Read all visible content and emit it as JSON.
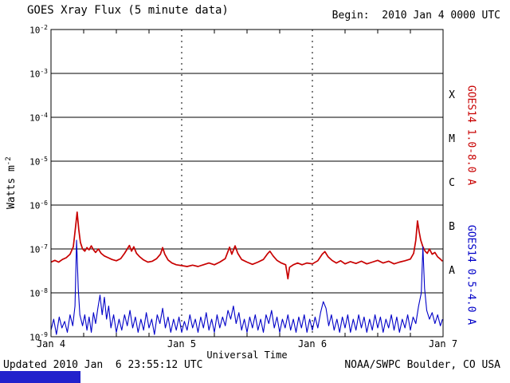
{
  "header": {
    "title": "GOES Xray Flux (5 minute data)",
    "begin_label": "Begin:  2010 Jan 4 0000 UTC"
  },
  "footer": {
    "updated": "Updated 2010 Jan  6 23:55:12 UTC",
    "source": "NOAA/SWPC Boulder, CO USA"
  },
  "axes": {
    "y_label_base": "Watts m",
    "y_label_exp": "-2",
    "x_label": "Universal Time",
    "y_tick_base": "10",
    "y_tick_exponents": [
      -2,
      -3,
      -4,
      -5,
      -6,
      -7,
      -8,
      -9
    ],
    "x_tick_labels": [
      "Jan 4",
      "Jan 5",
      "Jan 6",
      "Jan 7"
    ],
    "flare_classes": [
      {
        "label": "X",
        "mid_exp": -3.5
      },
      {
        "label": "M",
        "mid_exp": -4.5
      },
      {
        "label": "C",
        "mid_exp": -5.5
      },
      {
        "label": "B",
        "mid_exp": -6.5
      },
      {
        "label": "A",
        "mid_exp": -7.5
      }
    ]
  },
  "right_labels": [
    {
      "text": "GOES14 1.0-8.0 A",
      "color": "#c80000"
    },
    {
      "text": "GOES14 0.5-4.0 A",
      "color": "#0000c8"
    }
  ],
  "misc": {
    "corner_box_color": "#2222cc"
  },
  "chart_data": {
    "type": "line",
    "title": "GOES Xray Flux (5 minute data)",
    "xlabel": "Universal Time",
    "ylabel": "Watts m^-2",
    "y_scale": "log",
    "y_log_range": [
      -9,
      -2
    ],
    "x_range_hours": [
      0,
      72
    ],
    "x_tick_hours": [
      0,
      24,
      48,
      72
    ],
    "x_tick_labels": [
      "Jan 4",
      "Jan 5",
      "Jan 6",
      "Jan 7"
    ],
    "grid": {
      "horizontal": "solid-every-decade",
      "vertical": "dashed-every-day"
    },
    "legend_position": "right-rotated",
    "series": [
      {
        "id": "goes14-long",
        "name": "GOES14 1.0-8.0 A",
        "color": "#c80000",
        "points": [
          [
            0,
            -7.3
          ],
          [
            0.7,
            -7.26
          ],
          [
            1.4,
            -7.3
          ],
          [
            2.1,
            -7.24
          ],
          [
            2.8,
            -7.2
          ],
          [
            3.5,
            -7.12
          ],
          [
            4.1,
            -6.95
          ],
          [
            4.5,
            -6.5
          ],
          [
            4.8,
            -6.16
          ],
          [
            5.1,
            -6.55
          ],
          [
            5.4,
            -6.85
          ],
          [
            5.8,
            -7.0
          ],
          [
            6.2,
            -7.05
          ],
          [
            6.6,
            -6.97
          ],
          [
            7.0,
            -7.02
          ],
          [
            7.4,
            -6.93
          ],
          [
            7.8,
            -7.02
          ],
          [
            8.2,
            -7.08
          ],
          [
            8.7,
            -7.0
          ],
          [
            9.2,
            -7.1
          ],
          [
            9.8,
            -7.16
          ],
          [
            10.5,
            -7.2
          ],
          [
            11.2,
            -7.24
          ],
          [
            12,
            -7.27
          ],
          [
            12.8,
            -7.22
          ],
          [
            13.5,
            -7.1
          ],
          [
            14,
            -7.0
          ],
          [
            14.4,
            -6.92
          ],
          [
            14.8,
            -7.05
          ],
          [
            15.2,
            -6.95
          ],
          [
            15.7,
            -7.1
          ],
          [
            16.3,
            -7.18
          ],
          [
            17,
            -7.25
          ],
          [
            17.8,
            -7.3
          ],
          [
            18.6,
            -7.28
          ],
          [
            19.4,
            -7.22
          ],
          [
            20.1,
            -7.12
          ],
          [
            20.5,
            -6.97
          ],
          [
            20.9,
            -7.12
          ],
          [
            21.5,
            -7.25
          ],
          [
            22.2,
            -7.32
          ],
          [
            23,
            -7.36
          ],
          [
            24,
            -7.38
          ],
          [
            25,
            -7.4
          ],
          [
            26,
            -7.37
          ],
          [
            27,
            -7.4
          ],
          [
            28,
            -7.36
          ],
          [
            29,
            -7.32
          ],
          [
            30,
            -7.36
          ],
          [
            31,
            -7.3
          ],
          [
            32,
            -7.22
          ],
          [
            32.8,
            -6.96
          ],
          [
            33.2,
            -7.12
          ],
          [
            33.8,
            -6.93
          ],
          [
            34.3,
            -7.1
          ],
          [
            35,
            -7.24
          ],
          [
            36,
            -7.3
          ],
          [
            37,
            -7.35
          ],
          [
            38,
            -7.3
          ],
          [
            39,
            -7.24
          ],
          [
            39.7,
            -7.12
          ],
          [
            40.2,
            -7.05
          ],
          [
            40.8,
            -7.16
          ],
          [
            41.5,
            -7.26
          ],
          [
            42.3,
            -7.32
          ],
          [
            43.1,
            -7.36
          ],
          [
            43.5,
            -7.68
          ],
          [
            43.8,
            -7.42
          ],
          [
            44.5,
            -7.36
          ],
          [
            45.3,
            -7.32
          ],
          [
            46.1,
            -7.36
          ],
          [
            47,
            -7.32
          ],
          [
            48,
            -7.34
          ],
          [
            49,
            -7.27
          ],
          [
            49.8,
            -7.12
          ],
          [
            50.3,
            -7.06
          ],
          [
            50.9,
            -7.18
          ],
          [
            51.6,
            -7.26
          ],
          [
            52.4,
            -7.32
          ],
          [
            53.2,
            -7.27
          ],
          [
            54,
            -7.34
          ],
          [
            55,
            -7.29
          ],
          [
            56,
            -7.33
          ],
          [
            57,
            -7.28
          ],
          [
            58,
            -7.34
          ],
          [
            59,
            -7.3
          ],
          [
            60,
            -7.26
          ],
          [
            61,
            -7.32
          ],
          [
            62,
            -7.28
          ],
          [
            63,
            -7.34
          ],
          [
            64,
            -7.3
          ],
          [
            65,
            -7.27
          ],
          [
            66,
            -7.23
          ],
          [
            66.6,
            -7.1
          ],
          [
            67.0,
            -6.8
          ],
          [
            67.3,
            -6.36
          ],
          [
            67.6,
            -6.6
          ],
          [
            67.9,
            -6.8
          ],
          [
            68.3,
            -6.95
          ],
          [
            68.7,
            -7.05
          ],
          [
            69.1,
            -7.1
          ],
          [
            69.5,
            -7.0
          ],
          [
            70,
            -7.12
          ],
          [
            70.5,
            -7.08
          ],
          [
            71,
            -7.18
          ],
          [
            71.5,
            -7.23
          ],
          [
            71.9,
            -7.28
          ]
        ]
      },
      {
        "id": "goes14-short",
        "name": "GOES14 0.5-4.0 A",
        "color": "#0000c8",
        "points": [
          [
            0,
            -8.85
          ],
          [
            0.5,
            -8.6
          ],
          [
            1,
            -8.95
          ],
          [
            1.5,
            -8.55
          ],
          [
            2,
            -8.8
          ],
          [
            2.5,
            -8.65
          ],
          [
            3,
            -8.9
          ],
          [
            3.5,
            -8.5
          ],
          [
            4,
            -8.75
          ],
          [
            4.4,
            -8.3
          ],
          [
            4.7,
            -6.8
          ],
          [
            5,
            -7.9
          ],
          [
            5.3,
            -8.5
          ],
          [
            5.8,
            -8.75
          ],
          [
            6.2,
            -8.5
          ],
          [
            6.6,
            -8.85
          ],
          [
            7,
            -8.55
          ],
          [
            7.4,
            -8.9
          ],
          [
            7.8,
            -8.45
          ],
          [
            8.2,
            -8.7
          ],
          [
            8.6,
            -8.35
          ],
          [
            9,
            -8.05
          ],
          [
            9.4,
            -8.5
          ],
          [
            9.8,
            -8.1
          ],
          [
            10.2,
            -8.6
          ],
          [
            10.6,
            -8.3
          ],
          [
            11,
            -8.8
          ],
          [
            11.5,
            -8.5
          ],
          [
            12,
            -8.9
          ],
          [
            12.5,
            -8.6
          ],
          [
            13,
            -8.85
          ],
          [
            13.5,
            -8.5
          ],
          [
            14,
            -8.75
          ],
          [
            14.5,
            -8.4
          ],
          [
            15,
            -8.8
          ],
          [
            15.5,
            -8.55
          ],
          [
            16,
            -8.9
          ],
          [
            16.5,
            -8.6
          ],
          [
            17,
            -8.85
          ],
          [
            17.5,
            -8.45
          ],
          [
            18,
            -8.8
          ],
          [
            18.5,
            -8.6
          ],
          [
            19,
            -8.95
          ],
          [
            19.5,
            -8.5
          ],
          [
            20,
            -8.7
          ],
          [
            20.5,
            -8.35
          ],
          [
            21,
            -8.8
          ],
          [
            21.5,
            -8.55
          ],
          [
            22,
            -8.9
          ],
          [
            22.5,
            -8.6
          ],
          [
            23,
            -8.85
          ],
          [
            23.5,
            -8.55
          ],
          [
            24,
            -8.9
          ],
          [
            24.5,
            -8.65
          ],
          [
            25,
            -8.85
          ],
          [
            25.5,
            -8.5
          ],
          [
            26,
            -8.8
          ],
          [
            26.5,
            -8.6
          ],
          [
            27,
            -8.9
          ],
          [
            27.5,
            -8.55
          ],
          [
            28,
            -8.8
          ],
          [
            28.5,
            -8.45
          ],
          [
            29,
            -8.85
          ],
          [
            29.5,
            -8.6
          ],
          [
            30,
            -8.9
          ],
          [
            30.5,
            -8.5
          ],
          [
            31,
            -8.8
          ],
          [
            31.5,
            -8.55
          ],
          [
            32,
            -8.75
          ],
          [
            32.5,
            -8.4
          ],
          [
            33,
            -8.6
          ],
          [
            33.5,
            -8.3
          ],
          [
            34,
            -8.7
          ],
          [
            34.5,
            -8.45
          ],
          [
            35,
            -8.85
          ],
          [
            35.5,
            -8.6
          ],
          [
            36,
            -8.9
          ],
          [
            36.5,
            -8.55
          ],
          [
            37,
            -8.8
          ],
          [
            37.5,
            -8.5
          ],
          [
            38,
            -8.85
          ],
          [
            38.5,
            -8.6
          ],
          [
            39,
            -8.9
          ],
          [
            39.5,
            -8.5
          ],
          [
            40,
            -8.7
          ],
          [
            40.5,
            -8.4
          ],
          [
            41,
            -8.8
          ],
          [
            41.5,
            -8.55
          ],
          [
            42,
            -8.9
          ],
          [
            42.5,
            -8.6
          ],
          [
            43,
            -8.8
          ],
          [
            43.5,
            -8.5
          ],
          [
            44,
            -8.85
          ],
          [
            44.5,
            -8.6
          ],
          [
            45,
            -8.9
          ],
          [
            45.5,
            -8.55
          ],
          [
            46,
            -8.8
          ],
          [
            46.5,
            -8.5
          ],
          [
            47,
            -8.9
          ],
          [
            47.5,
            -8.6
          ],
          [
            48,
            -8.85
          ],
          [
            48.5,
            -8.55
          ],
          [
            49,
            -8.8
          ],
          [
            49.5,
            -8.45
          ],
          [
            50,
            -8.2
          ],
          [
            50.5,
            -8.35
          ],
          [
            51,
            -8.75
          ],
          [
            51.5,
            -8.5
          ],
          [
            52,
            -8.85
          ],
          [
            52.5,
            -8.6
          ],
          [
            53,
            -8.9
          ],
          [
            53.5,
            -8.55
          ],
          [
            54,
            -8.8
          ],
          [
            54.5,
            -8.5
          ],
          [
            55,
            -8.9
          ],
          [
            55.5,
            -8.6
          ],
          [
            56,
            -8.85
          ],
          [
            56.5,
            -8.5
          ],
          [
            57,
            -8.8
          ],
          [
            57.5,
            -8.55
          ],
          [
            58,
            -8.9
          ],
          [
            58.5,
            -8.6
          ],
          [
            59,
            -8.85
          ],
          [
            59.5,
            -8.5
          ],
          [
            60,
            -8.8
          ],
          [
            60.5,
            -8.55
          ],
          [
            61,
            -8.9
          ],
          [
            61.5,
            -8.6
          ],
          [
            62,
            -8.8
          ],
          [
            62.5,
            -8.5
          ],
          [
            63,
            -8.85
          ],
          [
            63.5,
            -8.55
          ],
          [
            64,
            -8.9
          ],
          [
            64.5,
            -8.6
          ],
          [
            65,
            -8.8
          ],
          [
            65.5,
            -8.5
          ],
          [
            66,
            -8.85
          ],
          [
            66.5,
            -8.55
          ],
          [
            67,
            -8.7
          ],
          [
            67.5,
            -8.3
          ],
          [
            68,
            -8.0
          ],
          [
            68.3,
            -6.95
          ],
          [
            68.6,
            -7.9
          ],
          [
            69,
            -8.4
          ],
          [
            69.5,
            -8.6
          ],
          [
            70,
            -8.45
          ],
          [
            70.5,
            -8.7
          ],
          [
            71,
            -8.5
          ],
          [
            71.5,
            -8.75
          ],
          [
            71.9,
            -8.6
          ]
        ]
      }
    ]
  }
}
